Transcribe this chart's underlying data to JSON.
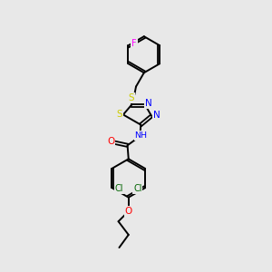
{
  "background_color": "#e8e8e8",
  "bond_color": "#000000",
  "atom_colors": {
    "F": "#ff00ff",
    "S": "#cccc00",
    "N": "#0000ff",
    "O": "#ff0000",
    "Cl": "#006400",
    "H": "#000000",
    "C": "#000000"
  },
  "figsize": [
    3.0,
    3.0
  ],
  "dpi": 100
}
